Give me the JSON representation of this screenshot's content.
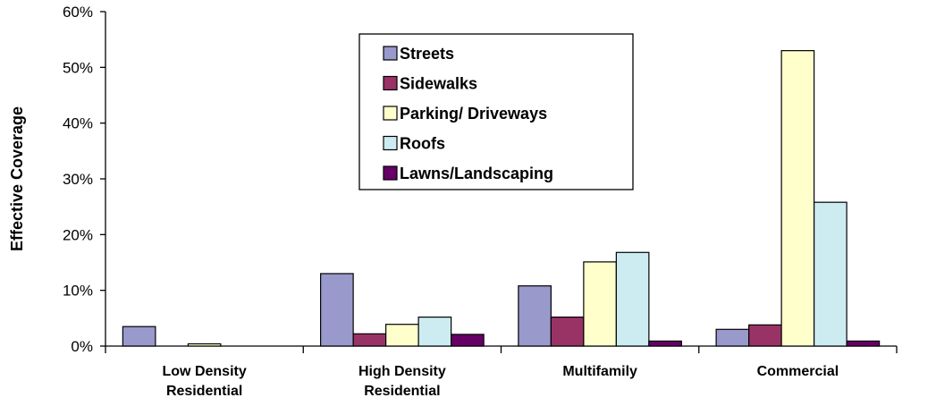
{
  "chart_data": {
    "type": "bar",
    "title": "",
    "xlabel": "",
    "ylabel": "Effective Coverage",
    "ylim": [
      0,
      60
    ],
    "y_ticks": [
      "0%",
      "10%",
      "20%",
      "30%",
      "40%",
      "50%",
      "60%"
    ],
    "y_tick_values": [
      0,
      10,
      20,
      30,
      40,
      50,
      60
    ],
    "grid": false,
    "legend_position": "top-center",
    "categories": [
      [
        "Low Density",
        "Residential"
      ],
      [
        "High Density",
        "Residential"
      ],
      [
        "Multifamily"
      ],
      [
        "Commercial"
      ]
    ],
    "series": [
      {
        "name": "Streets",
        "color": "#9999cc",
        "values": [
          3.5,
          13,
          10.8,
          3
        ]
      },
      {
        "name": "Sidewalks",
        "color": "#993366",
        "values": [
          0,
          2.2,
          5.2,
          3.8
        ]
      },
      {
        "name": "Parking/ Driveways",
        "color": "#ffffcc",
        "values": [
          0.4,
          3.9,
          15.1,
          53
        ]
      },
      {
        "name": "Roofs",
        "color": "#ccecf2",
        "values": [
          0,
          5.2,
          16.8,
          25.8
        ]
      },
      {
        "name": "Lawns/Landscaping",
        "color": "#660066",
        "values": [
          0,
          2.1,
          0.9,
          0.9
        ]
      }
    ]
  }
}
